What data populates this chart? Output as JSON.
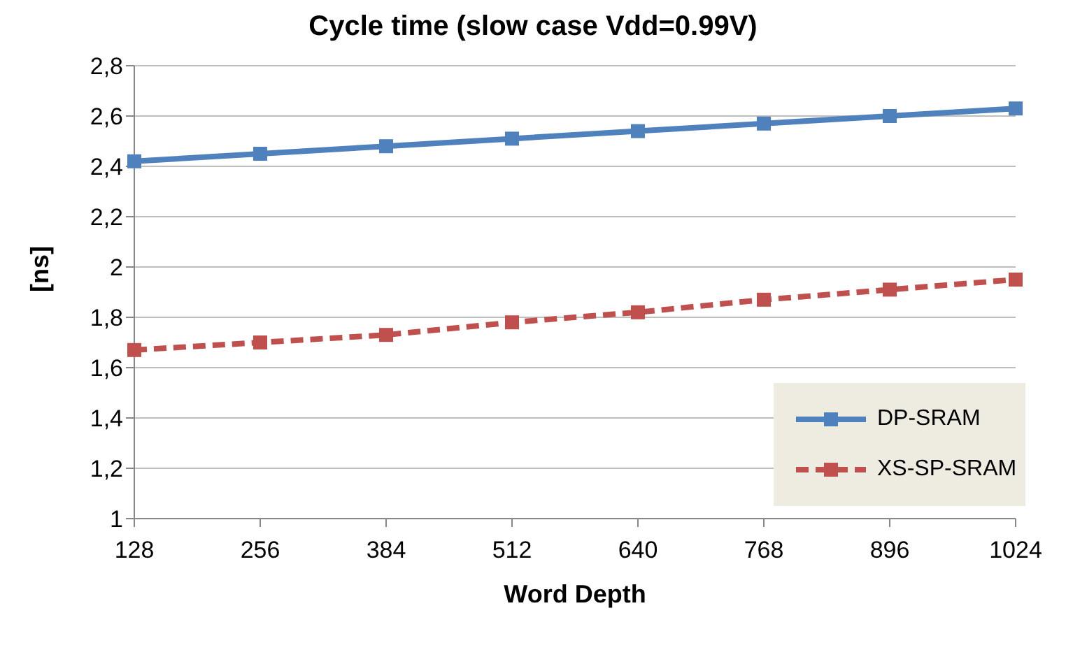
{
  "chart_data": {
    "type": "line",
    "title": "Cycle time (slow case Vdd=0.99V)",
    "xlabel": "Word Depth",
    "ylabel": "[ns]",
    "categories": [
      "128",
      "256",
      "384",
      "512",
      "640",
      "768",
      "896",
      "1024"
    ],
    "series": [
      {
        "name": "DP-SRAM",
        "color": "#4f81bd",
        "line_style": "solid",
        "values": [
          2.42,
          2.45,
          2.48,
          2.51,
          2.54,
          2.57,
          2.6,
          2.63
        ]
      },
      {
        "name": "XS-SP-SRAM",
        "color": "#c0504d",
        "line_style": "dashed",
        "values": [
          1.67,
          1.7,
          1.73,
          1.78,
          1.82,
          1.87,
          1.91,
          1.95
        ]
      }
    ],
    "ylim": [
      1,
      2.8
    ],
    "yticks": [
      {
        "value": 1,
        "label": "1"
      },
      {
        "value": 1.2,
        "label": "1,2"
      },
      {
        "value": 1.4,
        "label": "1,4"
      },
      {
        "value": 1.6,
        "label": "1,6"
      },
      {
        "value": 1.8,
        "label": "1,8"
      },
      {
        "value": 2,
        "label": "2"
      },
      {
        "value": 2.2,
        "label": "2,2"
      },
      {
        "value": 2.4,
        "label": "2,4"
      },
      {
        "value": 2.6,
        "label": "2,6"
      },
      {
        "value": 2.8,
        "label": "2,8"
      }
    ],
    "grid": "y",
    "legend": "right",
    "marker": "square"
  }
}
